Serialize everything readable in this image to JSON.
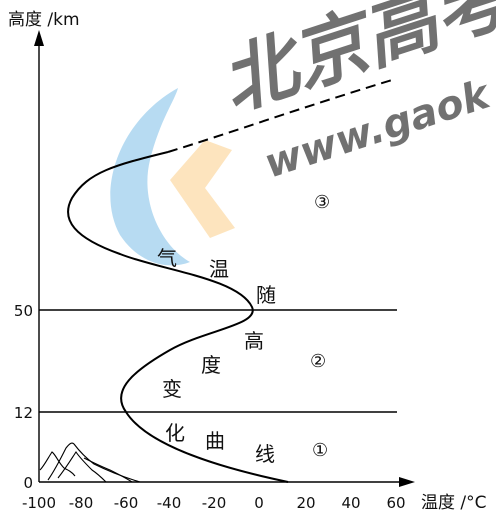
{
  "axes": {
    "y_label": "高度 /km",
    "x_label": "温度 /°C",
    "x_ticks": [
      "-100",
      "-80",
      "-60",
      "-40",
      "-20",
      "0",
      "20",
      "40",
      "60"
    ],
    "y_ticks": [
      "0",
      "12",
      "50"
    ]
  },
  "layers": [
    "①",
    "②",
    "③"
  ],
  "curve_label": "气温随高度变化曲线",
  "watermark": {
    "cn": "北京高考",
    "url": "www.gaok",
    "colors": {
      "blue": "#7fbfe6",
      "orange": "#fbd9a4"
    }
  },
  "colors": {
    "line": "#000000",
    "background": "#ffffff"
  }
}
